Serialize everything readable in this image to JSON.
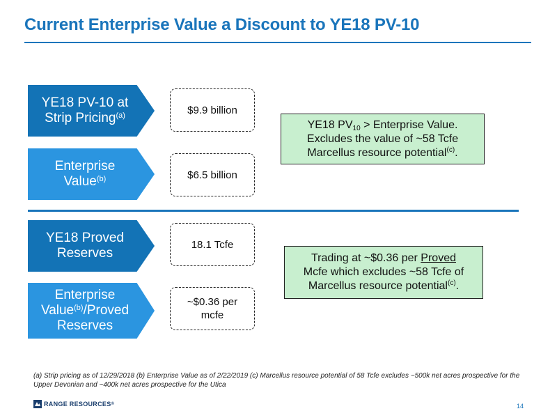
{
  "title": "Current Enterprise Value a Discount to YE18 PV-10",
  "rows": [
    {
      "label_line1": "YE18 PV-10 at",
      "label_line2": "Strip Pricing",
      "label_sup": "(a)",
      "value": "$9.9 billion"
    },
    {
      "label_line1": "Enterprise",
      "label_line2": "Value",
      "label_sup": "(b)",
      "value": "$6.5 billion"
    },
    {
      "label_line1": "YE18 Proved",
      "label_line2": "Reserves",
      "value": "18.1 Tcfe"
    },
    {
      "label_line1": "Enterprise",
      "label_line2a": "Value",
      "label_sup": "(b)",
      "label_line2b": "/Proved",
      "label_line3": "Reserves",
      "value_line1": "~$0.36 per",
      "value_line2": "mcfe"
    }
  ],
  "callouts": {
    "top": {
      "part1": "YE18 PV",
      "sub": "10",
      "part2": " > Enterprise Value.",
      "line2": "Excludes the value of ~58 Tcfe",
      "line3": "Marcellus resource potential",
      "sup": "(c)",
      "end": "."
    },
    "bottom": {
      "part1": "Trading at ~$0.36 per ",
      "underlined": "Proved",
      "line2": "Mcfe which excludes ~58 Tcfe of",
      "line3": "Marcellus resource potential",
      "sup": "(c)",
      "end": "."
    }
  },
  "footnote": "(a) Strip pricing as of 12/29/2018 (b) Enterprise Value as of 2/22/2019 (c) Marcellus resource potential of 58 Tcfe excludes ~500k net acres prospective for the Upper Devonian and ~400k net acres prospective for the Utica",
  "logo_text": "RANGE RESOURCES",
  "logo_mark": "®",
  "page_number": "14",
  "colors": {
    "title_blue": "#1a75bb",
    "arrow_dark": "#1373b6",
    "arrow_light": "#2b95e0",
    "callout_green": "#c8efcf"
  }
}
